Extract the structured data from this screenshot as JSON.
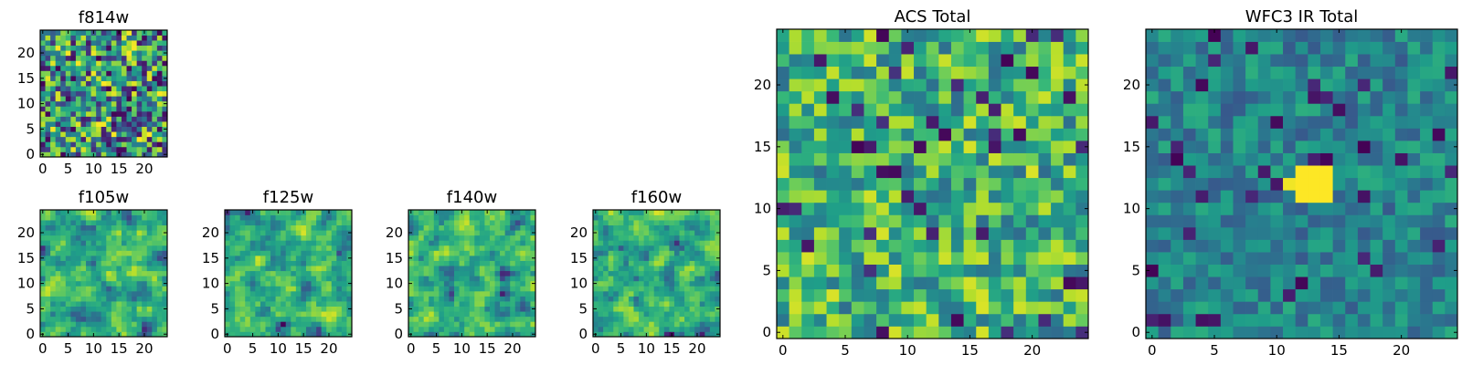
{
  "chart_data": [
    {
      "type": "heatmap",
      "title": "f814w",
      "grid": [
        25,
        25
      ],
      "colormap": "viridis",
      "xlim": [
        0,
        24
      ],
      "ylim": [
        0,
        24
      ],
      "xticks": [
        "0",
        "5",
        "10",
        "15",
        "20"
      ],
      "yticks": [
        "0",
        "5",
        "10",
        "15",
        "20"
      ],
      "description": "uniform noise",
      "peak": null
    },
    {
      "type": "heatmap",
      "title": "f105w",
      "grid": [
        25,
        25
      ],
      "colormap": "viridis",
      "xlim": [
        0,
        24
      ],
      "ylim": [
        0,
        24
      ],
      "xticks": [
        "0",
        "5",
        "10",
        "15",
        "20"
      ],
      "yticks": [
        "0",
        "5",
        "10",
        "15",
        "20"
      ],
      "description": "smooth noise",
      "peak": null
    },
    {
      "type": "heatmap",
      "title": "f125w",
      "grid": [
        25,
        25
      ],
      "colormap": "viridis",
      "xlim": [
        0,
        24
      ],
      "ylim": [
        0,
        24
      ],
      "xticks": [
        "0",
        "5",
        "10",
        "15",
        "20"
      ],
      "yticks": [
        "0",
        "5",
        "10",
        "15",
        "20"
      ],
      "description": "smooth noise",
      "peak": null
    },
    {
      "type": "heatmap",
      "title": "f140w",
      "grid": [
        25,
        25
      ],
      "colormap": "viridis",
      "xlim": [
        0,
        24
      ],
      "ylim": [
        0,
        24
      ],
      "xticks": [
        "0",
        "5",
        "10",
        "15",
        "20"
      ],
      "yticks": [
        "0",
        "5",
        "10",
        "15",
        "20"
      ],
      "description": "smooth noise",
      "peak": null
    },
    {
      "type": "heatmap",
      "title": "f160w",
      "grid": [
        25,
        25
      ],
      "colormap": "viridis",
      "xlim": [
        0,
        24
      ],
      "ylim": [
        0,
        24
      ],
      "xticks": [
        "0",
        "5",
        "10",
        "15",
        "20"
      ],
      "yticks": [
        "0",
        "5",
        "10",
        "15",
        "20"
      ],
      "description": "smooth noise",
      "peak": null
    },
    {
      "type": "heatmap",
      "title": "ACS Total",
      "grid": [
        25,
        25
      ],
      "colormap": "viridis",
      "xlim": [
        0,
        24
      ],
      "ylim": [
        0,
        24
      ],
      "xticks": [
        "0",
        "5",
        "10",
        "15",
        "20"
      ],
      "yticks": [
        "0",
        "5",
        "10",
        "15",
        "20"
      ],
      "description": "bright noise",
      "peak": null
    },
    {
      "type": "heatmap",
      "title": "WFC3 IR Total",
      "grid": [
        25,
        25
      ],
      "colormap": "viridis",
      "xlim": [
        0,
        24
      ],
      "ylim": [
        0,
        24
      ],
      "xticks": [
        "0",
        "5",
        "10",
        "15",
        "20"
      ],
      "yticks": [
        "0",
        "5",
        "10",
        "15",
        "20"
      ],
      "description": "faint noise with central source",
      "peak": {
        "x": 13,
        "y": 12
      }
    }
  ]
}
